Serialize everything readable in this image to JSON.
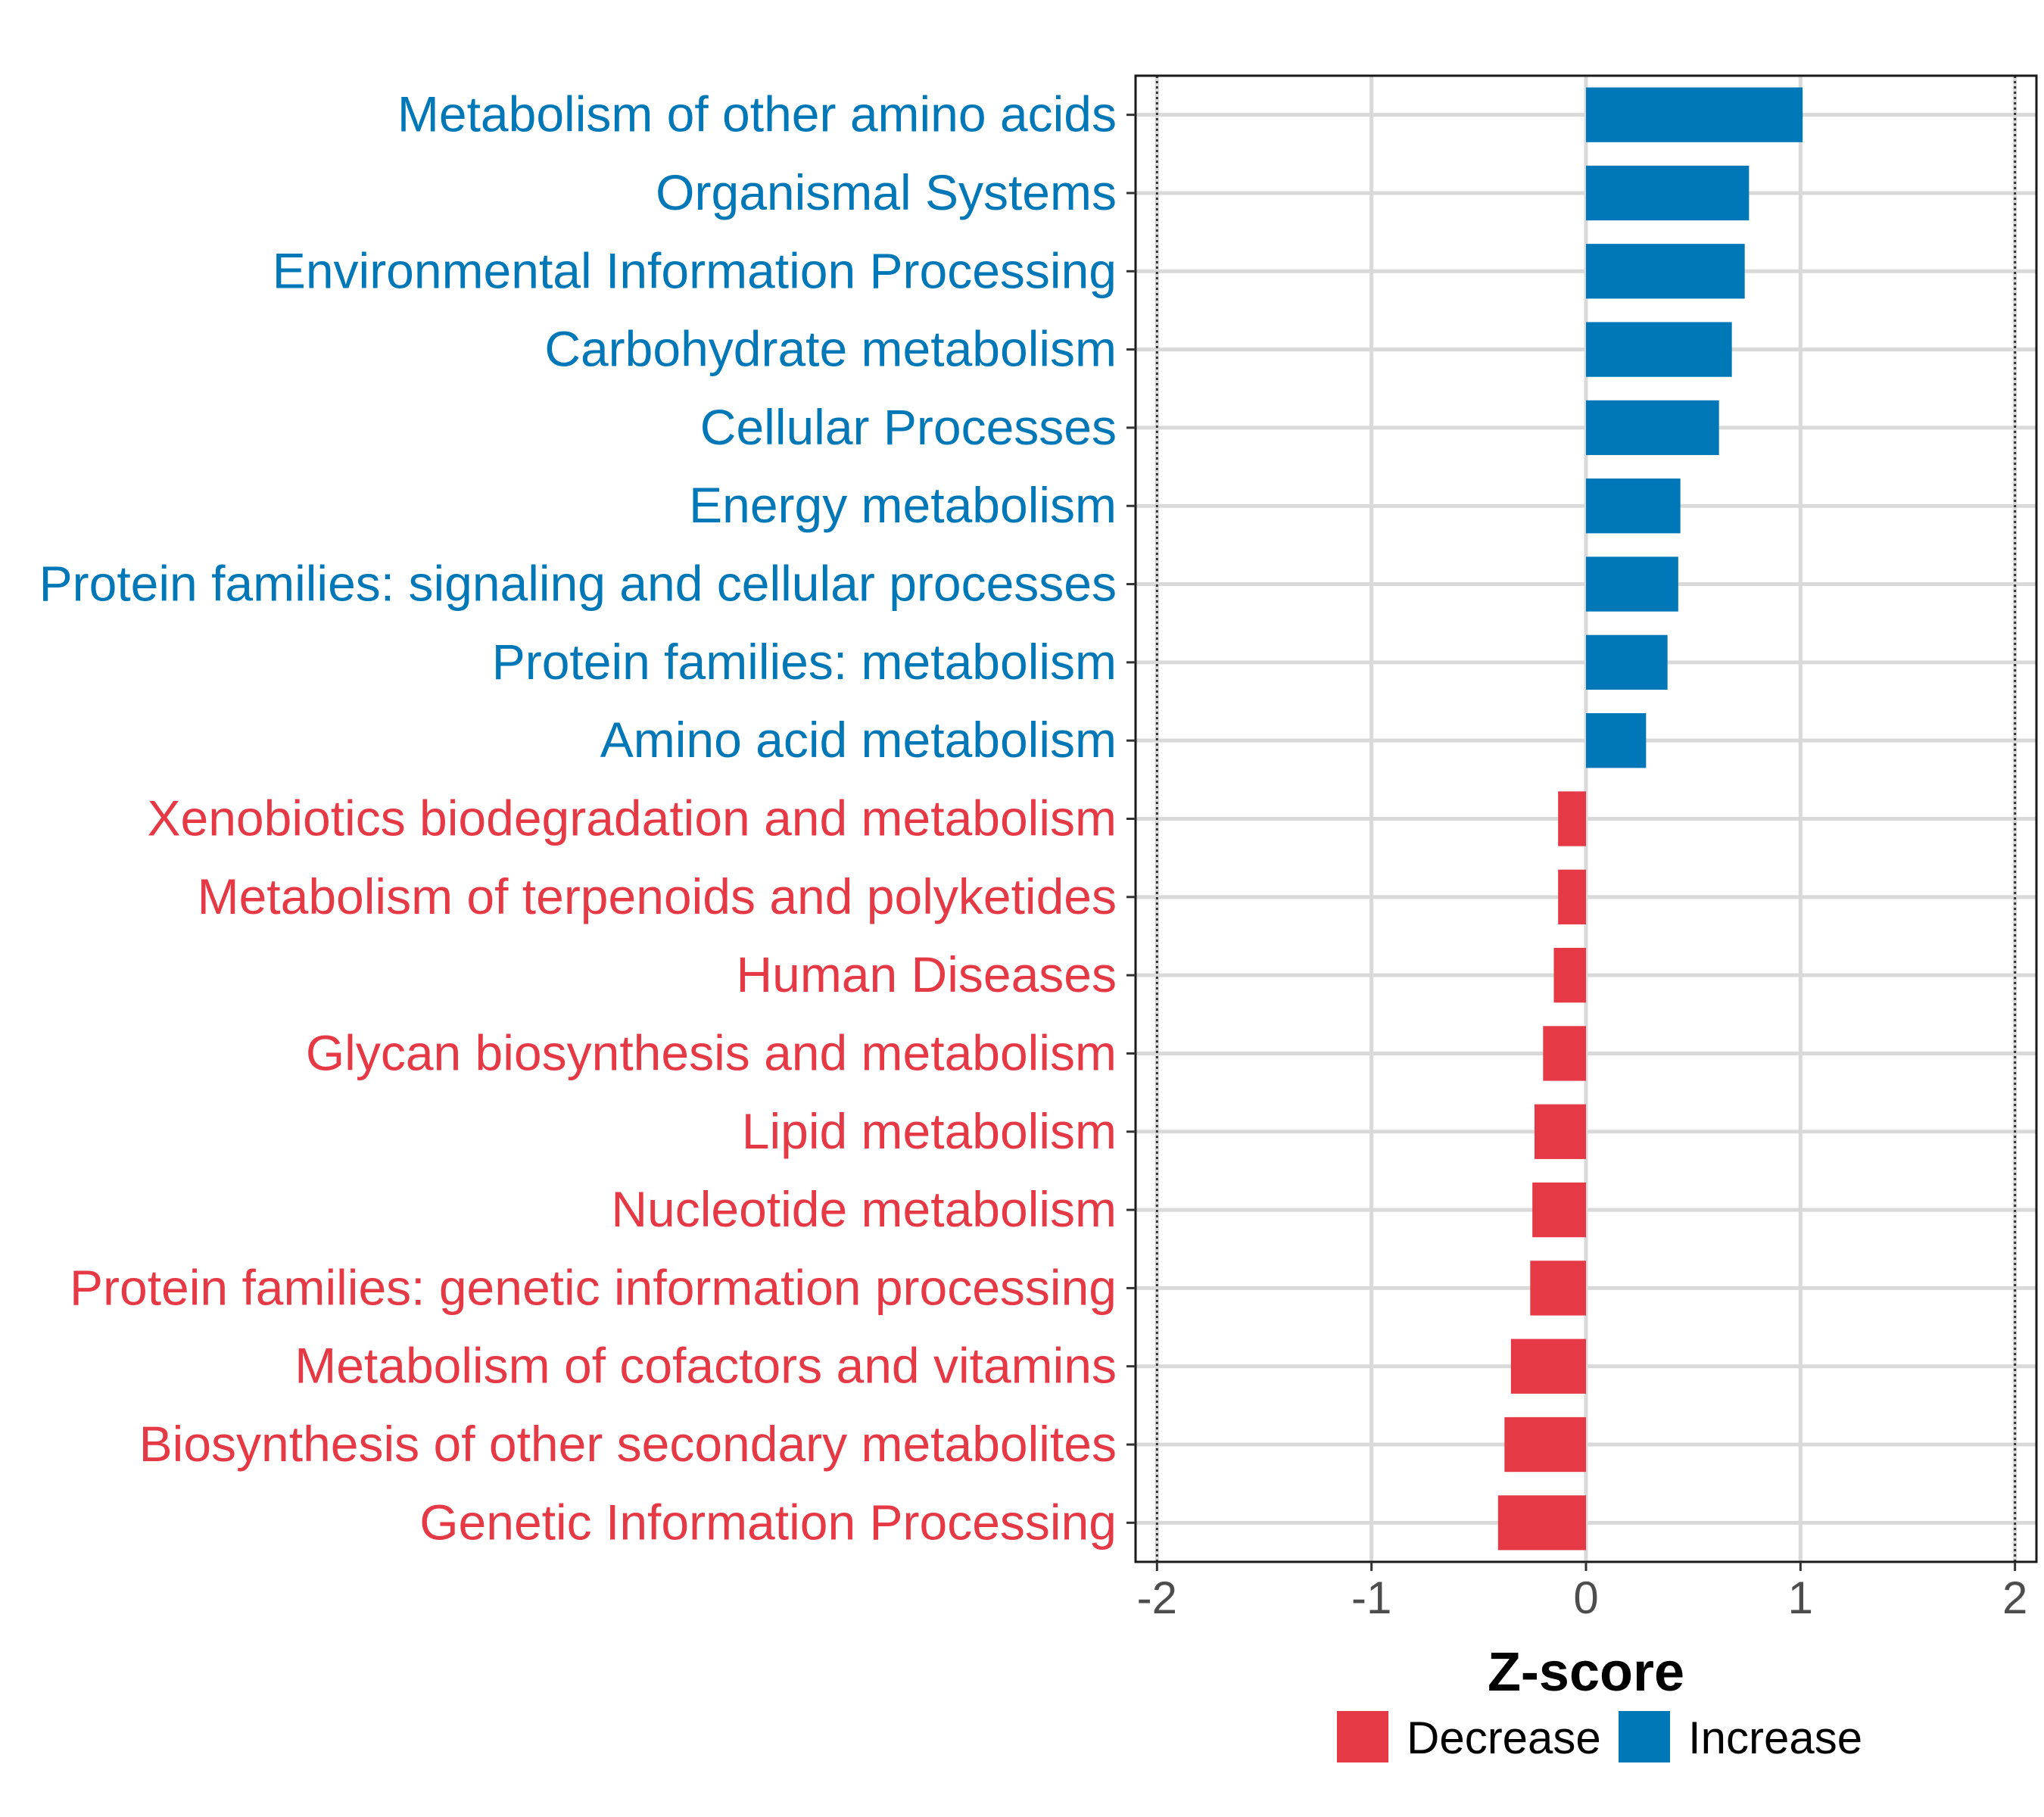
{
  "chart_data": {
    "type": "bar",
    "orientation": "horizontal",
    "xlabel": "Z-score",
    "xlim": [
      -2.1,
      2.1
    ],
    "xticks": [
      -2,
      -1,
      0,
      1,
      2
    ],
    "xtick_labels": [
      "-2",
      "-1",
      "0",
      "1",
      "2"
    ],
    "reference_lines": [
      -2,
      2
    ],
    "grid": true,
    "legend_position": "bottom",
    "legend": [
      {
        "label": "Decrease",
        "color": "#e63946"
      },
      {
        "label": "Increase",
        "color": "#0077b6"
      }
    ],
    "colors": {
      "Decrease": "#e63946",
      "Increase": "#0077b6"
    },
    "categories": [
      "Metabolism of other amino acids",
      "Organismal Systems",
      "Environmental Information Processing",
      "Carbohydrate metabolism",
      "Cellular Processes",
      "Energy metabolism",
      "Protein families: signaling and cellular processes",
      "Protein families: metabolism",
      "Amino acid metabolism",
      "Xenobiotics biodegradation and metabolism",
      "Metabolism of terpenoids and polyketides",
      "Human Diseases",
      "Glycan biosynthesis and metabolism",
      "Lipid metabolism",
      "Nucleotide metabolism",
      "Protein families: genetic information processing",
      "Metabolism of cofactors and vitamins",
      "Biosynthesis of other secondary metabolites",
      "Genetic Information Processing"
    ],
    "values": [
      1.01,
      0.76,
      0.74,
      0.68,
      0.62,
      0.44,
      0.43,
      0.38,
      0.28,
      -0.13,
      -0.13,
      -0.15,
      -0.2,
      -0.24,
      -0.25,
      -0.26,
      -0.35,
      -0.38,
      -0.41
    ],
    "groups": [
      "Increase",
      "Increase",
      "Increase",
      "Increase",
      "Increase",
      "Increase",
      "Increase",
      "Increase",
      "Increase",
      "Decrease",
      "Decrease",
      "Decrease",
      "Decrease",
      "Decrease",
      "Decrease",
      "Decrease",
      "Decrease",
      "Decrease",
      "Decrease"
    ]
  }
}
